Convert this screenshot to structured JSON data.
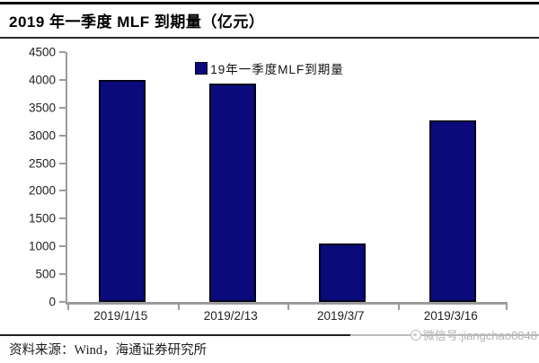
{
  "header": {
    "title": "2019 年一季度 MLF 到期量（亿元）"
  },
  "legend": {
    "label": "19年一季度MLF到期量"
  },
  "chart_data": {
    "type": "bar",
    "title": "2019 年一季度 MLF 到期量（亿元）",
    "categories": [
      "2019/1/15",
      "2019/2/13",
      "2019/3/7",
      "2019/3/16"
    ],
    "values": [
      4000,
      3930,
      1045,
      3270
    ],
    "series_name": "19年一季度MLF到期量",
    "xlabel": "",
    "ylabel": "",
    "ylim": [
      0,
      4500
    ],
    "ytick_step": 500,
    "grid": false,
    "legend_position": "top-center",
    "bar_color": "#0A0A7D",
    "bar_border_color": "#00001A",
    "axis_color": "#9B9B9B"
  },
  "footer": {
    "source": "资料来源：Wind，海通证券研究所"
  },
  "watermark": {
    "text": "微信号:jiangchao8848"
  }
}
